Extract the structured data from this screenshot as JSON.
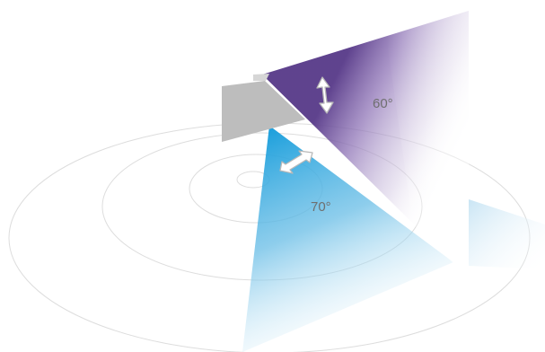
{
  "diagram": {
    "vertical_angle_label": "60°",
    "horizontal_angle_label": "70°",
    "colors": {
      "vertical_beam": "#6b4f9e",
      "horizontal_beam": "#29a3dc",
      "ring_stroke": "#dddddd",
      "device_body": "#bdbdbd",
      "arrow_stroke": "#b8b8b8"
    },
    "icons": {
      "vertical_arrow": "vertical-tilt-arrow-icon",
      "horizontal_arrow": "horizontal-rotate-arrow-icon"
    }
  }
}
